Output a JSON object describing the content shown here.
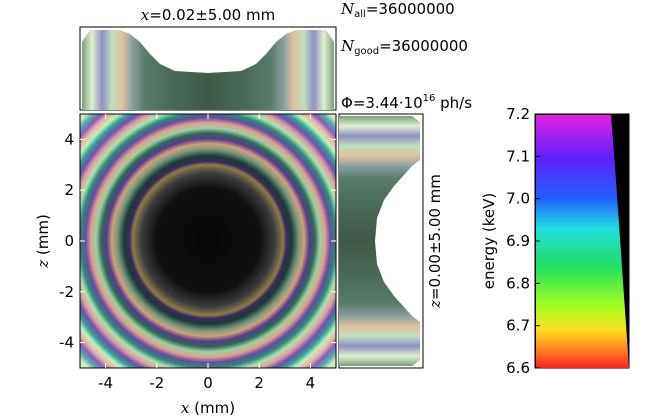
{
  "chart_data": [
    {
      "type": "heatmap",
      "xlabel_var": "x",
      "xlabel_unit": " (mm)",
      "ylabel_var": "z",
      "ylabel_unit": " (mm)",
      "xlim": [
        -5,
        5
      ],
      "ylim": [
        -5,
        5
      ],
      "xticks": [
        "-4",
        "-2",
        "0",
        "2",
        "4"
      ],
      "yticks": [
        "4",
        "2",
        "0",
        "-2",
        "-4"
      ],
      "description": "concentric color rings with dark center"
    },
    {
      "type": "area",
      "title_var": "x",
      "title_value": "=0.02±5.00 mm"
    },
    {
      "type": "area",
      "label_var": "z",
      "label_value": "=0.00±5.00 mm"
    },
    {
      "type": "heatmap",
      "ylabel": "energy (keV)",
      "ylim": [
        6.6,
        7.2
      ],
      "yticks": [
        "7.2",
        "7.1",
        "7.0",
        "6.9",
        "6.8",
        "6.7",
        "6.6"
      ]
    }
  ],
  "stats": {
    "n_all_sym": "N",
    "n_all_sub": "all",
    "n_all_val": "=36000000",
    "n_good_sym": "N",
    "n_good_sub": "good",
    "n_good_val": "=36000000",
    "flux_sym": "Φ",
    "flux_val": "=3.44·10",
    "flux_exp": "16",
    "flux_unit": " ph/s"
  }
}
